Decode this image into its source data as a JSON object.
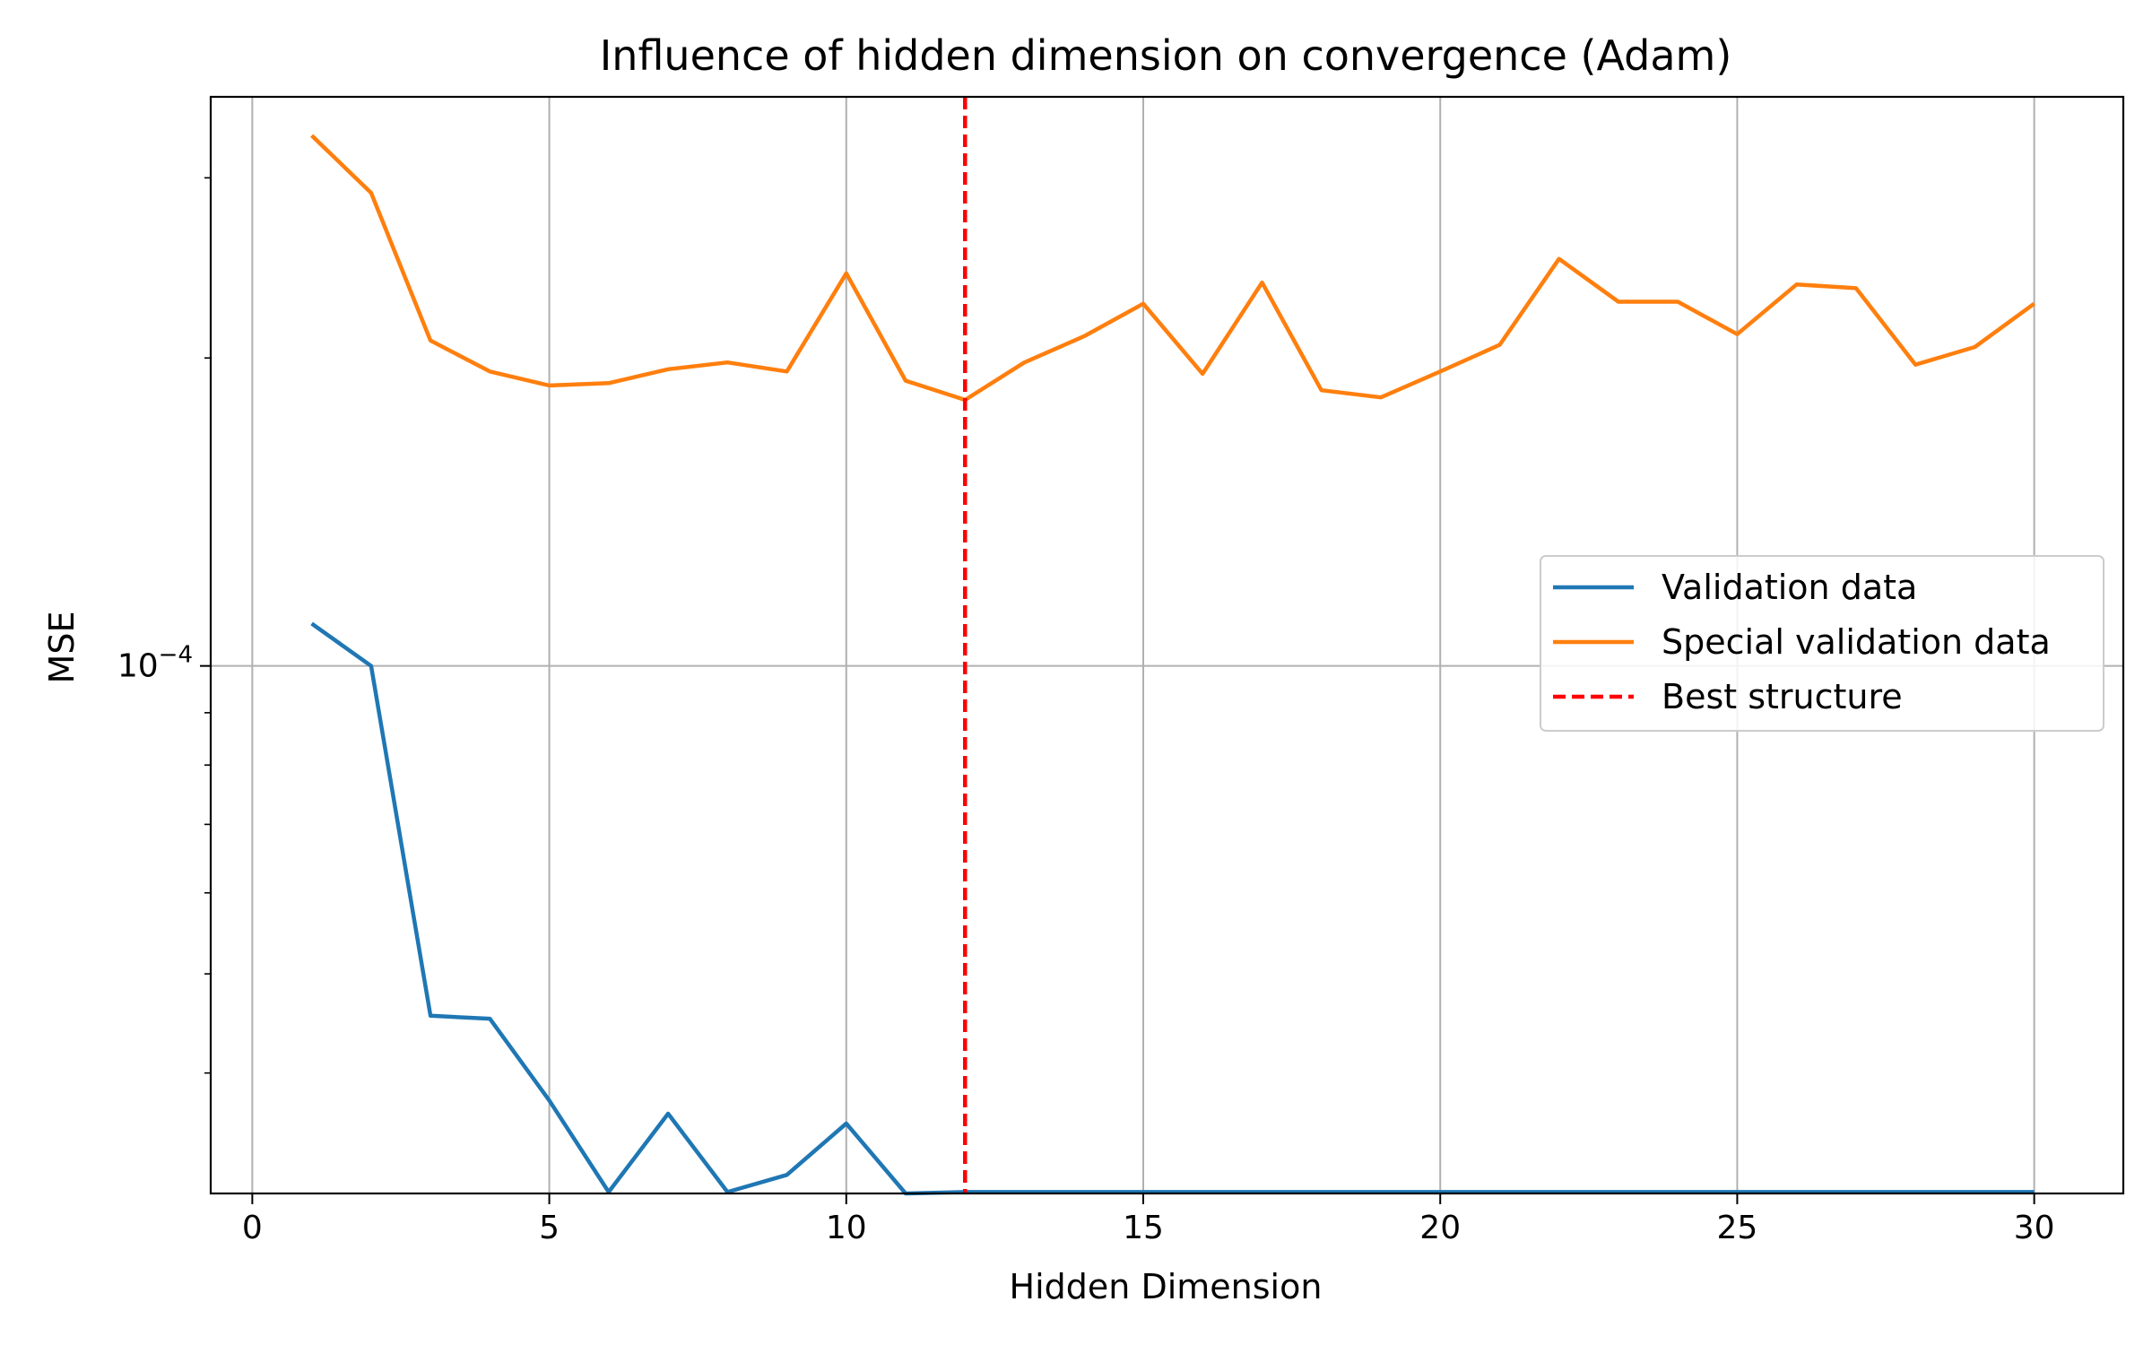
{
  "chart_data": {
    "type": "line",
    "title": "Influence of hidden dimension on convergence (Adam)",
    "xlabel": "Hidden Dimension",
    "ylabel": "MSE",
    "x_scale": "linear",
    "y_scale": "log",
    "xlim": [
      -0.7,
      31.5
    ],
    "ylim": [
      3.05e-05,
      0.00036
    ],
    "grid": true,
    "x_ticks": [
      0,
      5,
      10,
      15,
      20,
      25,
      30
    ],
    "x_tick_labels": [
      "0",
      "5",
      "10",
      "15",
      "20",
      "25",
      "30"
    ],
    "y_major_ticks": [
      0.0001
    ],
    "y_major_tick_labels": [
      {
        "base": "10",
        "exp": "−4"
      }
    ],
    "y_minor_ticks": [
      3e-05,
      4e-05,
      5e-05,
      6e-05,
      7e-05,
      8e-05,
      9e-05,
      0.0002,
      0.0003
    ],
    "legend_position": "center-right",
    "x": [
      1,
      2,
      3,
      4,
      5,
      6,
      7,
      8,
      9,
      10,
      11,
      12,
      13,
      14,
      15,
      16,
      17,
      18,
      19,
      20,
      21,
      22,
      23,
      24,
      25,
      26,
      27,
      28,
      29,
      30
    ],
    "series": [
      {
        "name": "Validation data",
        "color": "#1f77b4",
        "style": "solid",
        "values": [
          0.00011,
          0.0001,
          4.55e-05,
          4.52e-05,
          3.76e-05,
          3.06e-05,
          3.65e-05,
          3.06e-05,
          3.18e-05,
          3.57e-05,
          3.05e-05,
          3.06e-05,
          3.06e-05,
          3.06e-05,
          3.06e-05,
          3.06e-05,
          3.06e-05,
          3.06e-05,
          3.06e-05,
          3.06e-05,
          3.06e-05,
          3.06e-05,
          3.06e-05,
          3.06e-05,
          3.06e-05,
          3.06e-05,
          3.06e-05,
          3.06e-05,
          3.06e-05,
          3.06e-05
        ]
      },
      {
        "name": "Special validation data",
        "color": "#ff7f0e",
        "style": "solid",
        "values": [
          0.00033,
          0.00029,
          0.000208,
          0.000194,
          0.000188,
          0.000189,
          0.000195,
          0.000198,
          0.000194,
          0.000242,
          0.00019,
          0.000182,
          0.000198,
          0.00021,
          0.000226,
          0.000193,
          0.000237,
          0.000186,
          0.000183,
          0.000194,
          0.000206,
          0.00025,
          0.000227,
          0.000227,
          0.000211,
          0.000236,
          0.000234,
          0.000197,
          0.000205,
          0.000226
        ]
      }
    ],
    "vlines": [
      {
        "name": "Best structure",
        "x": 12,
        "color": "#ff0000",
        "style": "dashed"
      }
    ]
  }
}
